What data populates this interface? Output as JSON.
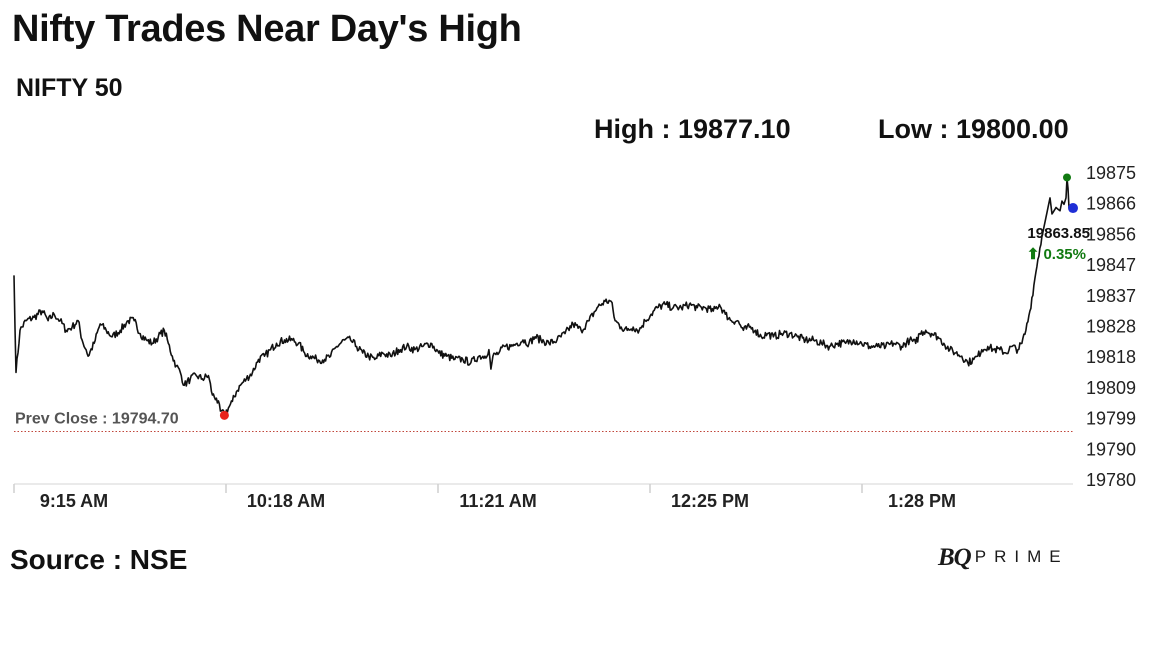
{
  "header": {
    "title": "Nifty Trades Near Day's High",
    "subtitle": "NIFTY 50",
    "high_label": "High : 19877.10",
    "low_label": "Low : 19800.00"
  },
  "footer": {
    "source": "Source : NSE",
    "brand_bq": "BQ",
    "brand_prime": "PRIME"
  },
  "chart_data": {
    "type": "line",
    "ylim": [
      19780,
      19877
    ],
    "y_ticks": [
      "19875",
      "19866",
      "19856",
      "19847",
      "19837",
      "19828",
      "19818",
      "19809",
      "19799",
      "19790",
      "19780"
    ],
    "x_ticks": [
      "9:15 AM",
      "10:18 AM",
      "11:21 AM",
      "12:25 PM",
      "1:28 PM"
    ],
    "prev_close": {
      "label": "Prev Close : 19794.70",
      "value": 19794.7
    },
    "last_value": {
      "label": "19863.85",
      "value": 19863.85
    },
    "change": {
      "label": "⬆ 0.35%"
    },
    "colors": {
      "line": "#111111",
      "low_marker": "#e8231b",
      "high_marker": "#117a11",
      "last_marker": "#1f2ed6",
      "change": "#117a11",
      "prev_close_line": "#c0463a"
    },
    "series": [
      {
        "points": [
          [
            0,
            19843
          ],
          [
            2,
            19813
          ],
          [
            6,
            19826
          ],
          [
            12,
            19829
          ],
          [
            20,
            19830
          ],
          [
            28,
            19832
          ],
          [
            34,
            19829
          ],
          [
            40,
            19831
          ],
          [
            46,
            19829
          ],
          [
            52,
            19826
          ],
          [
            58,
            19827
          ],
          [
            64,
            19829
          ],
          [
            68,
            19823
          ],
          [
            72,
            19820
          ],
          [
            74,
            19818
          ],
          [
            80,
            19822
          ],
          [
            86,
            19828
          ],
          [
            92,
            19826
          ],
          [
            98,
            19824
          ],
          [
            106,
            19826
          ],
          [
            114,
            19829
          ],
          [
            120,
            19829
          ],
          [
            126,
            19825
          ],
          [
            132,
            19823
          ],
          [
            138,
            19822
          ],
          [
            144,
            19824
          ],
          [
            150,
            19826
          ],
          [
            154,
            19822
          ],
          [
            158,
            19818
          ],
          [
            162,
            19815
          ],
          [
            166,
            19813
          ],
          [
            170,
            19809
          ],
          [
            176,
            19811
          ],
          [
            182,
            19812
          ],
          [
            188,
            19811
          ],
          [
            194,
            19812
          ],
          [
            198,
            19806
          ],
          [
            202,
            19805
          ],
          [
            206,
            19801
          ],
          [
            210,
            19800
          ],
          [
            214,
            19802
          ],
          [
            218,
            19804
          ],
          [
            222,
            19807
          ],
          [
            226,
            19809
          ],
          [
            232,
            19811
          ],
          [
            238,
            19813
          ],
          [
            244,
            19817
          ],
          [
            250,
            19818
          ],
          [
            256,
            19820
          ],
          [
            262,
            19822
          ],
          [
            270,
            19823
          ],
          [
            278,
            19823
          ],
          [
            284,
            19822
          ],
          [
            290,
            19819
          ],
          [
            296,
            19818
          ],
          [
            302,
            19817
          ],
          [
            310,
            19817
          ],
          [
            316,
            19818
          ],
          [
            322,
            19821
          ],
          [
            330,
            19823
          ],
          [
            336,
            19823
          ],
          [
            342,
            19821
          ],
          [
            348,
            19819
          ],
          [
            354,
            19818
          ],
          [
            360,
            19817
          ],
          [
            368,
            19819
          ],
          [
            376,
            19818
          ],
          [
            384,
            19820
          ],
          [
            392,
            19821
          ],
          [
            400,
            19820
          ],
          [
            408,
            19821
          ],
          [
            416,
            19822
          ],
          [
            424,
            19819
          ],
          [
            432,
            19818
          ],
          [
            440,
            19817
          ],
          [
            448,
            19817
          ],
          [
            456,
            19816
          ],
          [
            464,
            19818
          ],
          [
            470,
            19818
          ],
          [
            474,
            19820
          ],
          [
            476,
            19814
          ],
          [
            478,
            19818
          ],
          [
            484,
            19819
          ],
          [
            490,
            19821
          ],
          [
            496,
            19821
          ],
          [
            502,
            19822
          ],
          [
            508,
            19823
          ],
          [
            514,
            19822
          ],
          [
            520,
            19824
          ],
          [
            526,
            19823
          ],
          [
            534,
            19822
          ],
          [
            542,
            19823
          ],
          [
            550,
            19825
          ],
          [
            558,
            19828
          ],
          [
            566,
            19826
          ],
          [
            574,
            19829
          ],
          [
            582,
            19833
          ],
          [
            590,
            19835
          ],
          [
            596,
            19835
          ],
          [
            600,
            19829
          ],
          [
            606,
            19827
          ],
          [
            612,
            19826
          ],
          [
            618,
            19827
          ],
          [
            624,
            19826
          ],
          [
            630,
            19829
          ],
          [
            636,
            19831
          ],
          [
            642,
            19833
          ],
          [
            650,
            19834
          ],
          [
            658,
            19833
          ],
          [
            666,
            19833
          ],
          [
            674,
            19834
          ],
          [
            682,
            19833
          ],
          [
            690,
            19833
          ],
          [
            698,
            19832
          ],
          [
            704,
            19834
          ],
          [
            710,
            19831
          ],
          [
            716,
            19829
          ],
          [
            722,
            19829
          ],
          [
            728,
            19826
          ],
          [
            734,
            19827
          ],
          [
            740,
            19826
          ],
          [
            746,
            19824
          ],
          [
            752,
            19825
          ],
          [
            758,
            19824
          ],
          [
            766,
            19825
          ],
          [
            774,
            19825
          ],
          [
            782,
            19824
          ],
          [
            790,
            19823
          ],
          [
            798,
            19823
          ],
          [
            806,
            19822
          ],
          [
            814,
            19821
          ],
          [
            822,
            19822
          ],
          [
            830,
            19822
          ],
          [
            838,
            19823
          ],
          [
            846,
            19822
          ],
          [
            854,
            19821
          ],
          [
            862,
            19821
          ],
          [
            870,
            19821
          ],
          [
            878,
            19822
          ],
          [
            886,
            19821
          ],
          [
            894,
            19823
          ],
          [
            900,
            19822
          ],
          [
            904,
            19825
          ],
          [
            910,
            19826
          ],
          [
            916,
            19825
          ],
          [
            922,
            19824
          ],
          [
            928,
            19822
          ],
          [
            934,
            19820
          ],
          [
            940,
            19819
          ],
          [
            946,
            19818
          ],
          [
            952,
            19816
          ],
          [
            958,
            19817
          ],
          [
            962,
            19818
          ],
          [
            966,
            19820
          ],
          [
            972,
            19821
          ],
          [
            978,
            19820
          ],
          [
            984,
            19820
          ],
          [
            990,
            19819
          ],
          [
            996,
            19821
          ],
          [
            1002,
            19820
          ],
          [
            1006,
            19822
          ],
          [
            1010,
            19826
          ],
          [
            1014,
            19832
          ],
          [
            1018,
            19840
          ],
          [
            1022,
            19848
          ],
          [
            1026,
            19855
          ],
          [
            1030,
            19861
          ],
          [
            1034,
            19867
          ],
          [
            1036,
            19862
          ],
          [
            1040,
            19864
          ],
          [
            1044,
            19863
          ],
          [
            1046,
            19866
          ],
          [
            1048,
            19865
          ],
          [
            1050,
            19867
          ],
          [
            1051,
            19873
          ],
          [
            1052,
            19870
          ],
          [
            1053,
            19863.85
          ]
        ]
      }
    ]
  }
}
